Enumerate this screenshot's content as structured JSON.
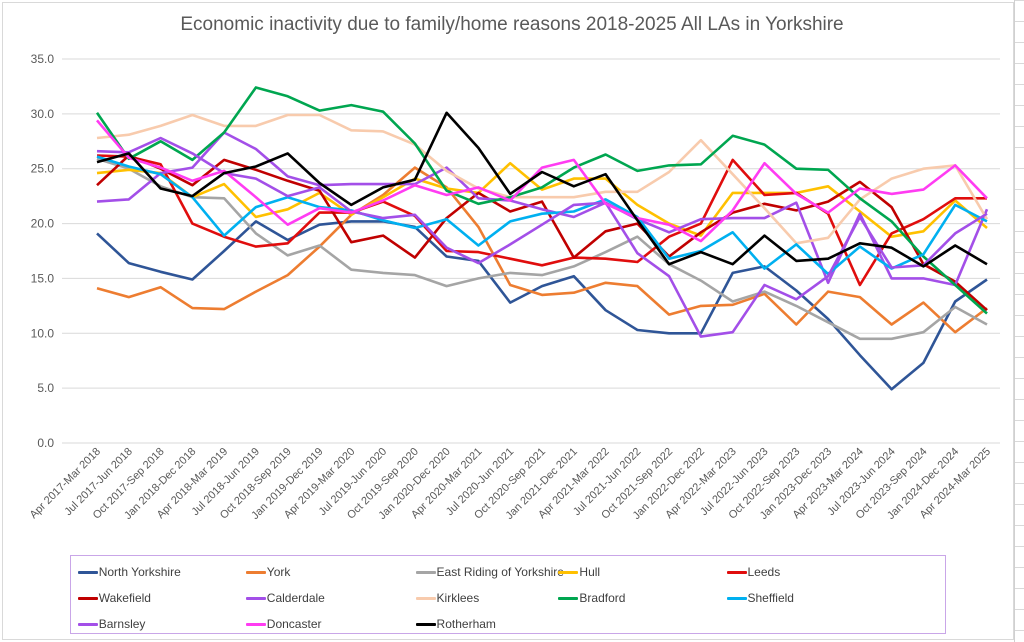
{
  "chart_data": {
    "type": "line",
    "title": "Economic inactivity due to family/home reasons 2018-2025 All LAs in Yorkshire",
    "xlabel": "",
    "ylabel": "",
    "ylim": [
      0,
      35
    ],
    "yticks": [
      "0.0",
      "5.0",
      "10.0",
      "15.0",
      "20.0",
      "25.0",
      "30.0",
      "35.0"
    ],
    "grid": true,
    "legend_position": "bottom",
    "categories": [
      "Apr 2017-Mar 2018",
      "Jul 2017-Jun 2018",
      "Oct 2017-Sep 2018",
      "Jan 2018-Dec 2018",
      "Apr 2018-Mar 2019",
      "Jul 2018-Jun 2019",
      "Oct 2018-Sep 2019",
      "Jan 2019-Dec 2019",
      "Apr 2019-Mar 2020",
      "Jul 2019-Jun 2020",
      "Oct 2019-Sep 2020",
      "Jan 2020-Dec 2020",
      "Apr 2020-Mar 2021",
      "Jul 2020-Jun 2021",
      "Oct 2020-Sep 2021",
      "Jan 2021-Dec 2021",
      "Apr 2021-Mar 2022",
      "Jul 2021-Jun 2022",
      "Oct 2021-Sep 2022",
      "Jan 2022-Dec 2022",
      "Apr 2022-Mar 2023",
      "Jul 2022-Jun 2023",
      "Oct 2022-Sep 2023",
      "Jan 2023-Dec 2023",
      "Apr 2023-Mar 2024",
      "Jul 2023-Jun 2024",
      "Oct 2023-Sep 2024",
      "Jan 2024-Dec 2024",
      "Apr 2024-Mar 2025"
    ],
    "series": [
      {
        "name": "North Yorkshire",
        "color": "#2f5597",
        "values": [
          19.1,
          16.4,
          15.6,
          14.9,
          17.5,
          20.2,
          18.5,
          19.9,
          20.2,
          20.2,
          19.7,
          17.0,
          16.6,
          12.8,
          14.3,
          15.2,
          12.1,
          10.3,
          10.0,
          10.0,
          15.5,
          16.1,
          13.9,
          11.3,
          8.0,
          4.9,
          7.3,
          12.9,
          14.9
        ]
      },
      {
        "name": "York",
        "color": "#ed7d31",
        "values": [
          14.1,
          13.3,
          14.2,
          12.3,
          12.2,
          13.8,
          15.3,
          17.9,
          20.8,
          22.6,
          25.1,
          23.3,
          19.7,
          14.4,
          13.5,
          13.7,
          14.6,
          14.3,
          11.7,
          12.5,
          12.6,
          13.6,
          10.8,
          13.8,
          13.3,
          10.8,
          12.8,
          10.1,
          12.3
        ]
      },
      {
        "name": "East Riding of Yorkshire",
        "color": "#a5a5a5",
        "values": [
          25.9,
          25.0,
          23.4,
          22.4,
          22.3,
          19.1,
          17.1,
          18.0,
          15.8,
          15.5,
          15.3,
          14.3,
          15.0,
          15.5,
          15.3,
          16.1,
          17.4,
          18.8,
          16.3,
          14.8,
          12.9,
          13.8,
          12.5,
          11.0,
          9.5,
          9.5,
          10.1,
          12.4,
          10.8
        ]
      },
      {
        "name": "Hull",
        "color": "#ffc000",
        "values": [
          24.6,
          24.9,
          24.6,
          22.4,
          23.6,
          20.6,
          21.3,
          22.8,
          20.8,
          22.4,
          24.1,
          23.2,
          22.8,
          25.5,
          23.1,
          24.1,
          24.1,
          21.7,
          20.0,
          18.9,
          22.8,
          22.8,
          22.8,
          23.4,
          21.1,
          18.8,
          19.3,
          22.1,
          19.6
        ]
      },
      {
        "name": "Leeds",
        "color": "#e00d0d",
        "values": [
          26.2,
          26.1,
          25.4,
          20.0,
          18.8,
          17.9,
          18.2,
          21.0,
          21.0,
          22.0,
          20.7,
          17.5,
          17.4,
          16.8,
          16.2,
          16.9,
          16.8,
          16.5,
          18.8,
          20.0,
          25.8,
          22.6,
          22.8,
          20.9,
          14.4,
          19.1,
          20.4,
          22.3,
          22.3
        ]
      },
      {
        "name": "Wakefield",
        "color": "#c00000",
        "values": [
          23.5,
          26.2,
          25.0,
          23.5,
          25.8,
          24.9,
          23.9,
          23.0,
          18.3,
          18.9,
          16.9,
          20.5,
          22.8,
          21.1,
          22.0,
          16.9,
          19.3,
          20.0,
          17.0,
          19.2,
          21.0,
          21.8,
          21.2,
          22.0,
          23.8,
          21.5,
          16.3,
          14.7,
          12.1
        ]
      },
      {
        "name": "Calderdale",
        "color": "#a34fe8",
        "values": [
          22.0,
          22.2,
          24.6,
          25.1,
          28.3,
          26.8,
          24.3,
          23.5,
          23.6,
          23.6,
          23.6,
          25.1,
          22.3,
          22.1,
          21.3,
          20.6,
          21.9,
          20.4,
          19.2,
          20.4,
          20.5,
          20.5,
          21.9,
          14.6,
          20.9,
          15.0,
          15.0,
          14.4,
          21.3
        ]
      },
      {
        "name": "Kirklees",
        "color": "#f8cbad",
        "values": [
          27.8,
          28.1,
          28.9,
          29.9,
          28.9,
          28.9,
          29.9,
          29.9,
          28.5,
          28.4,
          27.2,
          24.8,
          23.2,
          22.4,
          22.4,
          22.4,
          22.9,
          22.9,
          24.7,
          27.6,
          24.5,
          21.4,
          18.2,
          18.7,
          22.2,
          24.1,
          25.0,
          25.3,
          20.4
        ]
      },
      {
        "name": "Bradford",
        "color": "#00a650",
        "values": [
          30.1,
          25.9,
          27.5,
          25.8,
          28.3,
          32.4,
          31.6,
          30.3,
          30.8,
          30.2,
          27.3,
          23.0,
          21.8,
          22.4,
          23.3,
          25.1,
          26.3,
          24.8,
          25.3,
          25.4,
          28.0,
          27.2,
          25.0,
          24.9,
          22.3,
          20.2,
          17.0,
          14.4,
          11.8
        ]
      },
      {
        "name": "Sheffield",
        "color": "#00b0f0",
        "values": [
          26.1,
          25.2,
          24.5,
          22.4,
          18.9,
          21.5,
          22.4,
          21.5,
          21.2,
          20.3,
          19.6,
          20.4,
          18.0,
          20.2,
          20.9,
          21.1,
          22.2,
          20.6,
          16.8,
          17.5,
          19.2,
          15.9,
          18.1,
          15.4,
          17.9,
          15.9,
          17.2,
          21.7,
          20.2
        ]
      },
      {
        "name": "Barnsley",
        "color": "#a34fe8",
        "values": [
          26.6,
          26.5,
          27.8,
          26.4,
          24.6,
          24.1,
          22.5,
          23.3,
          21.1,
          20.5,
          20.8,
          17.8,
          16.4,
          18.1,
          19.9,
          21.7,
          21.9,
          17.3,
          15.2,
          9.7,
          10.1,
          14.4,
          13.1,
          15.2,
          20.6,
          16.0,
          16.2,
          19.1,
          20.9
        ]
      },
      {
        "name": "Doncaster",
        "color": "#ff3cf2",
        "values": [
          29.4,
          26.0,
          25.1,
          23.9,
          24.8,
          22.4,
          19.9,
          21.4,
          21.0,
          22.1,
          23.5,
          22.6,
          23.3,
          22.1,
          25.1,
          25.8,
          21.8,
          20.5,
          19.9,
          18.4,
          21.2,
          25.5,
          22.7,
          21.0,
          23.2,
          22.7,
          23.1,
          25.3,
          22.3
        ]
      },
      {
        "name": "Rotherham",
        "color": "#000000",
        "values": [
          25.6,
          26.4,
          23.2,
          22.5,
          24.6,
          25.2,
          26.4,
          23.7,
          21.7,
          23.3,
          24.0,
          30.1,
          26.9,
          22.7,
          24.7,
          23.4,
          24.5,
          20.3,
          16.3,
          17.4,
          16.3,
          18.9,
          16.6,
          16.8,
          18.2,
          17.8,
          16.1,
          18.0,
          16.3
        ]
      }
    ]
  }
}
